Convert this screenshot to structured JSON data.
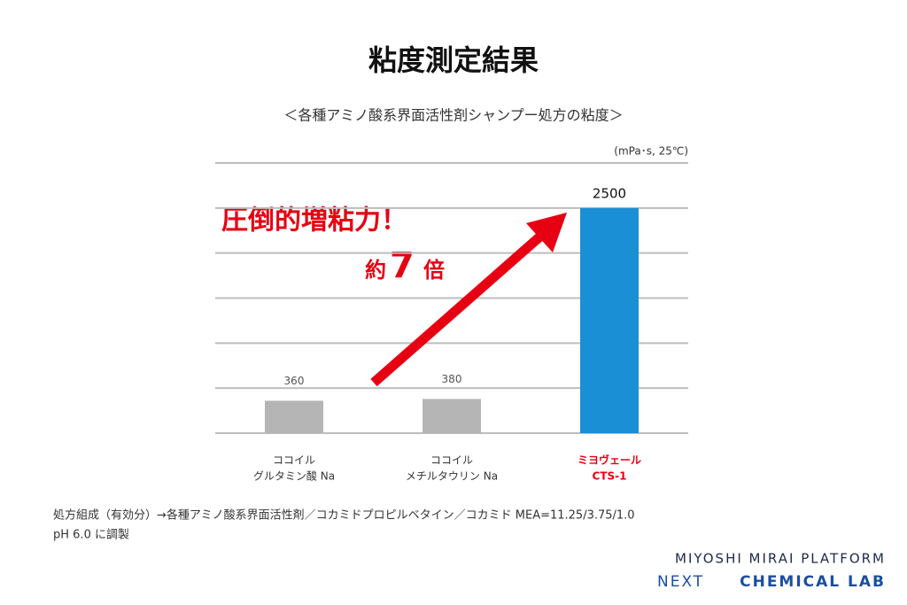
{
  "chart_data": {
    "type": "bar",
    "title": "粘度測定結果",
    "subtitle": "＜各種アミノ酸系界面活性剤シャンプー処方の粘度＞",
    "unit_label": "(mPa･s,  25℃)",
    "categories": [
      [
        "ココイル",
        "グルタミン酸 Na"
      ],
      [
        "ココイル",
        "メチルタウリン Na"
      ],
      [
        "ミヨヴェール",
        "CTS-1"
      ]
    ],
    "values": [
      360,
      380,
      2500
    ],
    "colors": [
      "#b5b5b6",
      "#b5b5b6",
      "#1a8fd6"
    ],
    "label_colors": [
      "#333333",
      "#333333",
      "#e60012"
    ],
    "ylim": [
      0,
      3000
    ],
    "yticks": [
      0,
      500,
      1000,
      1500,
      2000,
      2500,
      3000
    ],
    "grid": true,
    "annotation": {
      "headline": "圧倒的増粘力！",
      "prefix": "約",
      "number": "7",
      "suffix": "倍"
    },
    "footnote": [
      "処方組成（有効分）→各種アミノ酸系界面活性剤／コカミドプロピルベタイン／コカミド MEA=11.25/3.75/1.0",
      "pH 6.0 に調製"
    ]
  },
  "brand": {
    "line1": "MIYOSHI MIRAI PLATFORM",
    "line2a": "NEXT",
    "line2b": "CHEMICAL LAB"
  }
}
